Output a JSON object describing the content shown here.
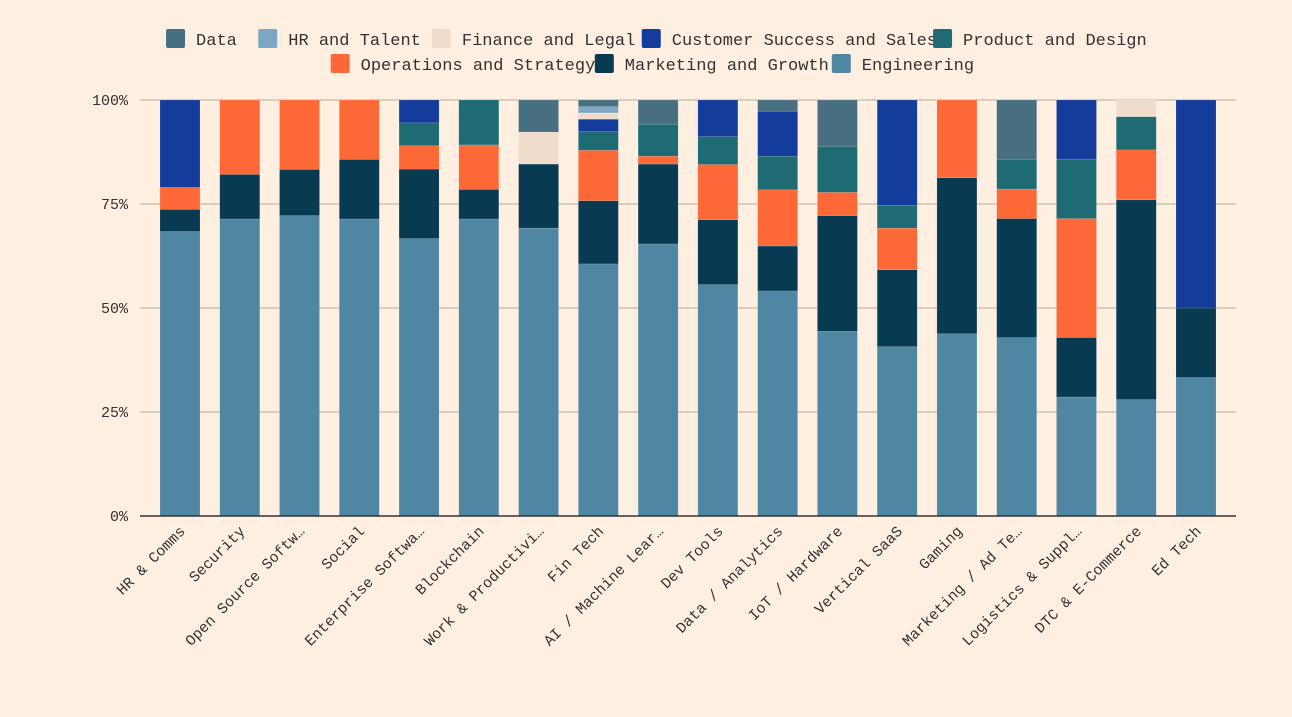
{
  "chart_data": {
    "type": "bar",
    "stacked": true,
    "normalized": true,
    "title": "",
    "xlabel": "",
    "ylabel": "",
    "ylim": [
      0,
      100
    ],
    "yticks": [
      "0%",
      "25%",
      "50%",
      "75%",
      "100%"
    ],
    "ytick_values": [
      0,
      25,
      50,
      75,
      100
    ],
    "grid": "horizontal",
    "legend_placement": "top",
    "background": "#ffefe0",
    "categories": [
      "HR & Comms",
      "Security",
      "Open Source Softw…",
      "Social",
      "Enterprise Softwa…",
      "Blockchain",
      "Work & Productivi…",
      "Fin Tech",
      "AI / Machine Lear…",
      "Dev Tools",
      "Data / Analytics",
      "IoT / Hardware",
      "Vertical SaaS",
      "Gaming",
      "Marketing / Ad Te…",
      "Logistics & Suppl…",
      "DTC & E-Commerce",
      "Ed Tech"
    ],
    "legend_order": [
      "Data",
      "HR and Talent",
      "Finance and Legal",
      "Customer Success and Sales",
      "Product and Design",
      "Operations and Strategy",
      "Marketing and Growth",
      "Engineering"
    ],
    "series": [
      {
        "name": "Engineering",
        "color": "#4f86a2",
        "values": [
          68.4,
          71.4,
          72.2,
          71.4,
          66.7,
          71.4,
          69.2,
          60.6,
          65.4,
          55.6,
          54.1,
          44.4,
          40.7,
          43.8,
          42.9,
          28.6,
          28.0,
          33.3
        ]
      },
      {
        "name": "Marketing and Growth",
        "color": "#083a52",
        "values": [
          5.3,
          10.7,
          11.1,
          14.3,
          16.7,
          7.1,
          15.4,
          15.2,
          19.2,
          15.6,
          10.8,
          27.8,
          18.5,
          37.5,
          28.6,
          14.3,
          48.0,
          16.7
        ]
      },
      {
        "name": "Operations and Strategy",
        "color": "#fc6836",
        "values": [
          5.3,
          17.9,
          16.7,
          14.3,
          5.6,
          10.7,
          0,
          12.1,
          1.9,
          13.3,
          13.5,
          5.6,
          10.0,
          18.7,
          7.1,
          28.6,
          12.0,
          0
        ]
      },
      {
        "name": "Product and Design",
        "color": "#1f6b73",
        "values": [
          0,
          0,
          0,
          0,
          5.5,
          10.8,
          0,
          4.5,
          7.7,
          6.7,
          8.1,
          11.1,
          5.5,
          0,
          7.1,
          14.3,
          8.0,
          0
        ]
      },
      {
        "name": "Customer Success and Sales",
        "color": "#143c9a",
        "values": [
          21.0,
          0,
          0,
          0,
          5.5,
          0,
          0,
          3.0,
          0,
          8.8,
          10.8,
          0,
          25.3,
          0,
          0,
          14.2,
          0,
          50.0
        ]
      },
      {
        "name": "Finance and Legal",
        "color": "#f0dccb",
        "values": [
          0,
          0,
          0,
          0,
          0,
          0,
          7.7,
          1.5,
          0,
          0,
          0,
          0,
          0,
          0,
          0,
          0,
          4.0,
          0
        ]
      },
      {
        "name": "HR and Talent",
        "color": "#7ba7c2",
        "values": [
          0,
          0,
          0,
          0,
          0,
          0,
          0,
          1.5,
          0,
          0,
          0,
          0,
          0,
          0,
          0,
          0,
          0,
          0
        ]
      },
      {
        "name": "Data",
        "color": "#476f80",
        "values": [
          0,
          0,
          0,
          0,
          0,
          0,
          7.7,
          1.6,
          5.8,
          0,
          2.7,
          11.1,
          0,
          0,
          14.3,
          0,
          0,
          0
        ]
      }
    ]
  }
}
